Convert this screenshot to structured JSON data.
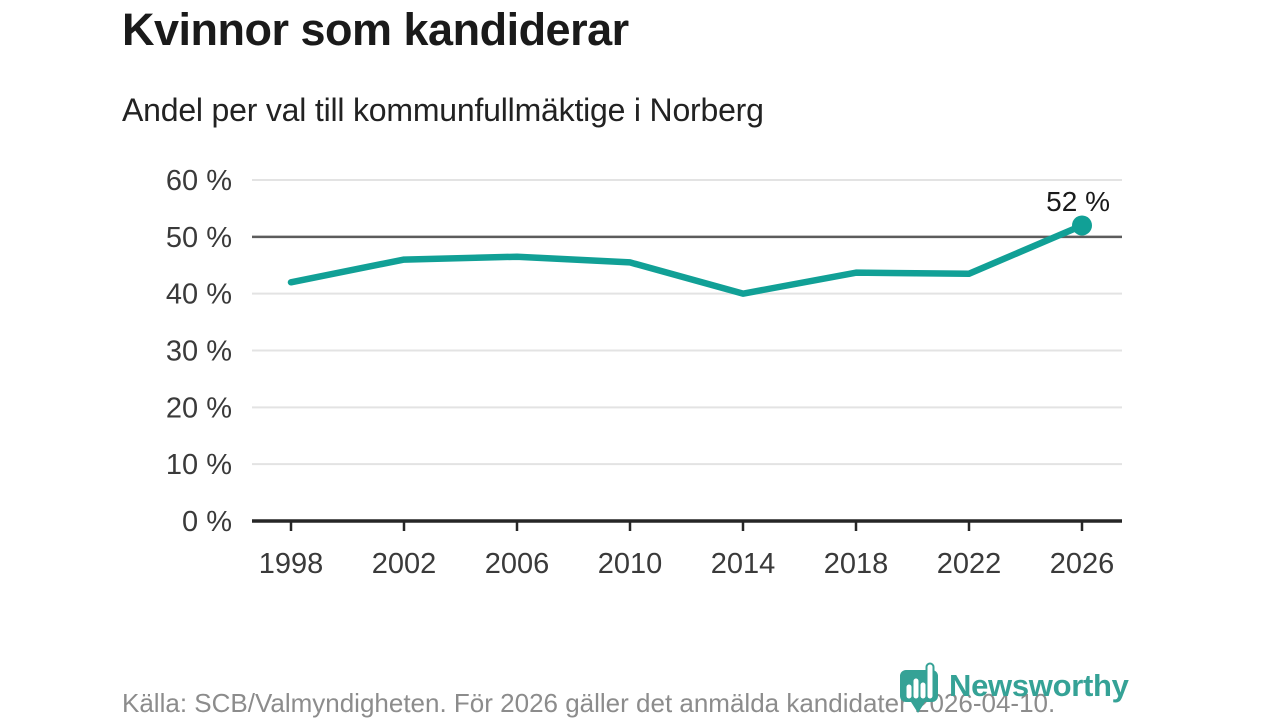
{
  "header": {
    "title": "Kvinnor som kandiderar",
    "subtitle": "Andel per val till kommunfullmäktige i Norberg"
  },
  "chart_data": {
    "type": "line",
    "title": "Kvinnor som kandiderar",
    "subtitle": "Andel per val till kommunfullmäktige i Norberg",
    "x": [
      1998,
      2002,
      2006,
      2010,
      2014,
      2018,
      2022,
      2026
    ],
    "values": [
      42,
      46,
      46.5,
      45.5,
      40,
      43.7,
      43.5,
      52
    ],
    "end_label": "52 %",
    "xlabel": "",
    "ylabel": "",
    "ylim": [
      0,
      60
    ],
    "yticks": [
      {
        "value": 0,
        "label": "0 %"
      },
      {
        "value": 10,
        "label": "10 %"
      },
      {
        "value": 20,
        "label": "20 %"
      },
      {
        "value": 30,
        "label": "30 %"
      },
      {
        "value": 40,
        "label": "40 %"
      },
      {
        "value": 50,
        "label": "50 %"
      },
      {
        "value": 60,
        "label": "60 %"
      }
    ],
    "emphasized_gridline": 50,
    "grid": true,
    "legend": "none",
    "marker": "circle-on-last-point"
  },
  "footer": {
    "source": "Källa: SCB/Valmyndigheten. För 2026 gäller det anmälda kandidater 2026-04-10.",
    "logo_text": "Newsworthy"
  },
  "colors": {
    "line": "#11a096",
    "grid": "#e3e3e3",
    "grid_emphasis": "#5c5c5c",
    "axis": "#262626",
    "tick_label": "#3a3a3a",
    "annotation": "#1a1a1a",
    "logo": "#35a296"
  }
}
